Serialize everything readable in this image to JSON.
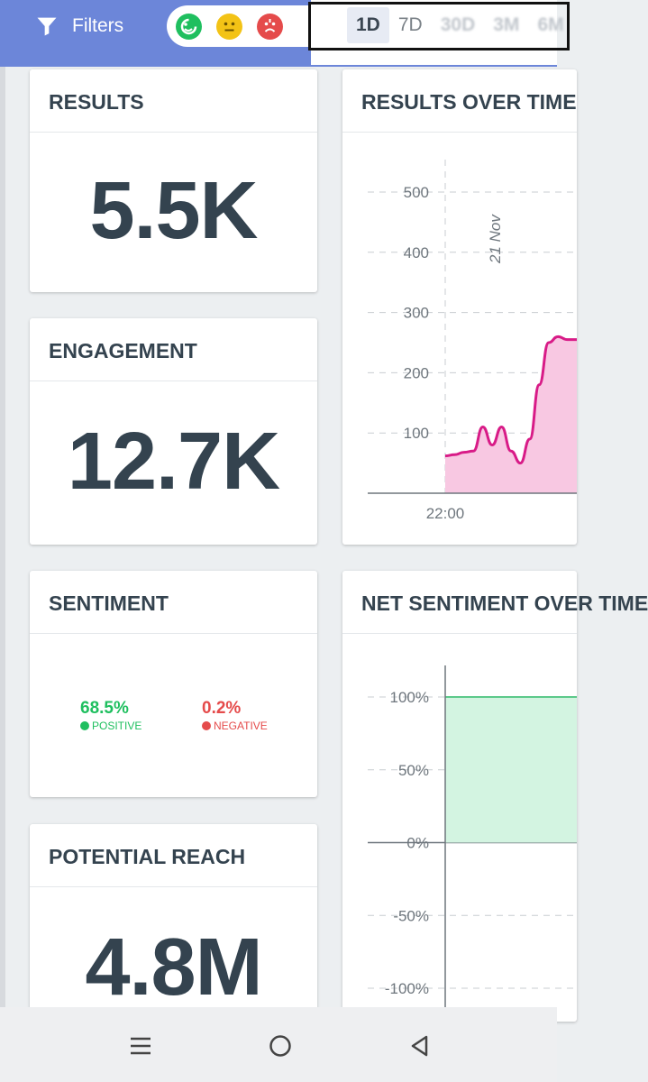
{
  "toolbar": {
    "filters_label": "Filters",
    "sentiment_filters": [
      {
        "name": "positive",
        "color": "#1fbf5f"
      },
      {
        "name": "neutral",
        "color": "#f3c316"
      },
      {
        "name": "negative",
        "color": "#e54b4b"
      }
    ],
    "ranges": [
      "1D",
      "7D",
      "30D",
      "3M",
      "6M"
    ],
    "active_range": "1D"
  },
  "cards": {
    "results": {
      "title": "RESULTS",
      "value": "5.5K"
    },
    "engagement": {
      "title": "ENGAGEMENT",
      "value": "12.7K"
    },
    "sentiment": {
      "title": "SENTIMENT",
      "positive_value": "68.5%",
      "positive_label": "POSITIVE",
      "negative_value": "0.2%",
      "negative_label": "NEGATIVE",
      "positive_color": "#1fbf5f",
      "negative_color": "#e54b4b"
    },
    "reach": {
      "title": "POTENTIAL REACH",
      "value": "4.8M"
    },
    "results_over_time": {
      "title": "RESULTS OVER TIME"
    },
    "net_sentiment": {
      "title": "NET SENTIMENT OVER TIME"
    }
  },
  "chart_data": [
    {
      "type": "area",
      "title": "RESULTS OVER TIME",
      "y_ticks": [
        "500",
        "400",
        "300",
        "200",
        "100"
      ],
      "ylim": [
        0,
        500
      ],
      "x_tick_label": "22:00",
      "annotation": "21 Nov",
      "x": [
        0,
        1,
        2,
        3,
        4,
        5,
        6,
        7,
        8,
        9,
        10,
        11,
        12,
        13,
        14
      ],
      "values": [
        62,
        64,
        68,
        70,
        110,
        80,
        110,
        70,
        50,
        90,
        180,
        250,
        260,
        255,
        255
      ],
      "color": "#d81b87",
      "fill": "#f8c8e2"
    },
    {
      "type": "area",
      "title": "NET SENTIMENT OVER TIME",
      "y_ticks": [
        "100%",
        "50%",
        "0%",
        "-50%",
        "-100%"
      ],
      "ylim": [
        -100,
        100
      ],
      "values": [
        100,
        100,
        100
      ],
      "color": "#5cc98a",
      "fill": "#d3f4e1"
    }
  ],
  "navbar": {
    "icons": [
      "menu-icon",
      "home-icon",
      "back-icon"
    ]
  }
}
